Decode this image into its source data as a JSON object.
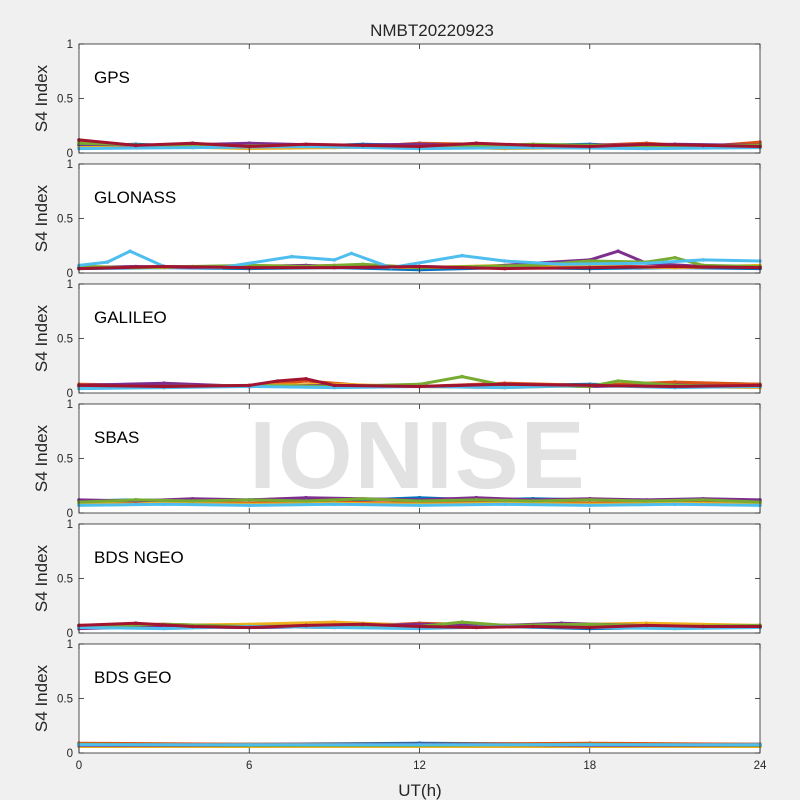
{
  "figure": {
    "title": "NMBT20220923",
    "xlabel": "UT(h)",
    "watermark": "IONISE",
    "background": "#f0f0f0",
    "axes_background": "#ffffff"
  },
  "chart_data": {
    "type": "scatter",
    "title": "NMBT20220923",
    "xlabel": "UT(h)",
    "xlim": [
      0,
      24
    ],
    "xticks": [
      "0",
      "6",
      "12",
      "18",
      "24"
    ],
    "ylim": [
      0,
      1
    ],
    "yticks": [
      "0",
      "0.5",
      "1"
    ],
    "grid": false,
    "colors": [
      "#0072BD",
      "#D95319",
      "#EDB120",
      "#7E2F8E",
      "#77AC30",
      "#4DBEEE",
      "#A2142F"
    ],
    "panels": [
      {
        "label": "GPS",
        "ylabel": "S4 Index",
        "series": [
          {
            "x": [
              0,
              2,
              4,
              6,
              8,
              10,
              12,
              14,
              16,
              18,
              20,
              22,
              24
            ],
            "y": [
              0.07,
              0.08,
              0.06,
              0.07,
              0.06,
              0.08,
              0.07,
              0.06,
              0.07,
              0.08,
              0.06,
              0.07,
              0.08
            ]
          },
          {
            "x": [
              0,
              2,
              4,
              6,
              8,
              10,
              12,
              14,
              16,
              18,
              20,
              22,
              24
            ],
            "y": [
              0.1,
              0.06,
              0.08,
              0.05,
              0.07,
              0.06,
              0.09,
              0.08,
              0.05,
              0.07,
              0.09,
              0.06,
              0.1
            ]
          },
          {
            "x": [
              0,
              3,
              6,
              9,
              12,
              15,
              18,
              21,
              24
            ],
            "y": [
              0.05,
              0.06,
              0.04,
              0.05,
              0.06,
              0.04,
              0.05,
              0.06,
              0.05
            ]
          },
          {
            "x": [
              0,
              3,
              6,
              9,
              12,
              15,
              18,
              21,
              24
            ],
            "y": [
              0.08,
              0.07,
              0.09,
              0.07,
              0.08,
              0.06,
              0.07,
              0.08,
              0.07
            ]
          },
          {
            "x": [
              0,
              4,
              8,
              12,
              16,
              20,
              24
            ],
            "y": [
              0.09,
              0.06,
              0.07,
              0.05,
              0.08,
              0.06,
              0.07
            ]
          },
          {
            "x": [
              0,
              4,
              8,
              12,
              16,
              20,
              24
            ],
            "y": [
              0.04,
              0.05,
              0.06,
              0.04,
              0.05,
              0.04,
              0.05
            ]
          },
          {
            "x": [
              0,
              2,
              4,
              6,
              8,
              10,
              12,
              14,
              16,
              18,
              20,
              22,
              24
            ],
            "y": [
              0.12,
              0.07,
              0.09,
              0.06,
              0.08,
              0.07,
              0.06,
              0.09,
              0.07,
              0.06,
              0.08,
              0.07,
              0.06
            ]
          }
        ]
      },
      {
        "label": "GLONASS",
        "ylabel": "S4 Index",
        "series": [
          {
            "x": [
              0,
              3,
              6,
              9,
              12,
              15,
              18,
              21,
              24
            ],
            "y": [
              0.04,
              0.05,
              0.04,
              0.05,
              0.03,
              0.05,
              0.04,
              0.05,
              0.04
            ]
          },
          {
            "x": [
              0,
              3,
              6,
              9,
              12,
              15,
              18,
              21,
              24
            ],
            "y": [
              0.05,
              0.06,
              0.05,
              0.07,
              0.05,
              0.06,
              0.07,
              0.05,
              0.06
            ]
          },
          {
            "x": [
              0,
              3,
              6,
              9,
              12,
              15,
              18,
              21,
              24
            ],
            "y": [
              0.06,
              0.05,
              0.07,
              0.06,
              0.05,
              0.07,
              0.06,
              0.05,
              0.07
            ]
          },
          {
            "x": [
              0,
              2,
              4,
              6,
              8,
              10,
              12,
              14,
              16,
              18,
              19,
              20,
              22,
              24
            ],
            "y": [
              0.05,
              0.06,
              0.05,
              0.06,
              0.07,
              0.05,
              0.06,
              0.05,
              0.09,
              0.12,
              0.2,
              0.09,
              0.06,
              0.05
            ]
          },
          {
            "x": [
              0,
              2,
              4,
              6,
              8,
              10,
              12,
              14,
              16,
              18,
              20,
              21,
              22,
              24
            ],
            "y": [
              0.06,
              0.05,
              0.06,
              0.07,
              0.06,
              0.08,
              0.05,
              0.06,
              0.07,
              0.11,
              0.1,
              0.14,
              0.07,
              0.06
            ]
          },
          {
            "x": [
              0,
              1,
              1.8,
              3,
              5,
              7.5,
              9,
              9.6,
              11,
              13.5,
              15,
              17,
              20,
              22,
              24
            ],
            "y": [
              0.07,
              0.1,
              0.2,
              0.06,
              0.05,
              0.15,
              0.12,
              0.18,
              0.05,
              0.16,
              0.11,
              0.08,
              0.09,
              0.12,
              0.11
            ]
          },
          {
            "x": [
              0,
              3,
              6,
              9,
              12,
              15,
              18,
              21,
              24
            ],
            "y": [
              0.04,
              0.06,
              0.05,
              0.05,
              0.06,
              0.04,
              0.05,
              0.06,
              0.05
            ]
          }
        ]
      },
      {
        "label": "GALILEO",
        "ylabel": "S4 Index",
        "series": [
          {
            "x": [
              0,
              3,
              6,
              9,
              12,
              15,
              18,
              20,
              22,
              24
            ],
            "y": [
              0.06,
              0.07,
              0.06,
              0.07,
              0.06,
              0.07,
              0.08,
              0.07,
              0.09,
              0.08
            ]
          },
          {
            "x": [
              0,
              3,
              6,
              8,
              10,
              12,
              15,
              18,
              21,
              24
            ],
            "y": [
              0.08,
              0.07,
              0.06,
              0.11,
              0.07,
              0.06,
              0.09,
              0.07,
              0.1,
              0.08
            ]
          },
          {
            "x": [
              0,
              3,
              6,
              9,
              12,
              15,
              18,
              21,
              24
            ],
            "y": [
              0.06,
              0.05,
              0.07,
              0.08,
              0.06,
              0.05,
              0.07,
              0.06,
              0.05
            ]
          },
          {
            "x": [
              0,
              3,
              6,
              9,
              12,
              15,
              18,
              21,
              24
            ],
            "y": [
              0.07,
              0.09,
              0.06,
              0.07,
              0.06,
              0.08,
              0.06,
              0.07,
              0.06
            ]
          },
          {
            "x": [
              0,
              3,
              6,
              9,
              12,
              13.5,
              15,
              18,
              19,
              21,
              24
            ],
            "y": [
              0.05,
              0.06,
              0.07,
              0.06,
              0.08,
              0.15,
              0.07,
              0.06,
              0.11,
              0.07,
              0.06
            ]
          },
          {
            "x": [
              0,
              3,
              6,
              9,
              12,
              15,
              18,
              21,
              24
            ],
            "y": [
              0.04,
              0.05,
              0.06,
              0.05,
              0.06,
              0.05,
              0.07,
              0.05,
              0.06
            ]
          },
          {
            "x": [
              0,
              3,
              6,
              7,
              8,
              9,
              12,
              15,
              18,
              21,
              24
            ],
            "y": [
              0.07,
              0.06,
              0.07,
              0.11,
              0.13,
              0.07,
              0.06,
              0.08,
              0.07,
              0.06,
              0.07
            ]
          }
        ]
      },
      {
        "label": "SBAS",
        "ylabel": "S4 Index",
        "series": [
          {
            "x": [
              0,
              2,
              4,
              6,
              8,
              10,
              12,
              14,
              16,
              18,
              20,
              22,
              24
            ],
            "y": [
              0.11,
              0.12,
              0.11,
              0.12,
              0.13,
              0.12,
              0.14,
              0.12,
              0.13,
              0.12,
              0.11,
              0.12,
              0.11
            ]
          },
          {
            "x": [
              0,
              3,
              6,
              9,
              12,
              15,
              18,
              21,
              24
            ],
            "y": [
              0.09,
              0.1,
              0.09,
              0.1,
              0.09,
              0.1,
              0.09,
              0.1,
              0.09
            ]
          },
          {
            "x": [
              0,
              3,
              6,
              9,
              12,
              15,
              18,
              21,
              24
            ],
            "y": [
              0.08,
              0.09,
              0.08,
              0.09,
              0.08,
              0.09,
              0.08,
              0.09,
              0.08
            ]
          },
          {
            "x": [
              0,
              2,
              4,
              6,
              8,
              10,
              12,
              14,
              16,
              18,
              20,
              22,
              24
            ],
            "y": [
              0.12,
              0.11,
              0.13,
              0.12,
              0.14,
              0.13,
              0.12,
              0.14,
              0.12,
              0.13,
              0.12,
              0.13,
              0.12
            ]
          },
          {
            "x": [
              0,
              2,
              4,
              6,
              8,
              10,
              12,
              14,
              16,
              18,
              20,
              22,
              24
            ],
            "y": [
              0.1,
              0.12,
              0.11,
              0.12,
              0.11,
              0.13,
              0.11,
              0.12,
              0.11,
              0.12,
              0.11,
              0.12,
              0.1
            ]
          },
          {
            "x": [
              0,
              3,
              6,
              9,
              12,
              15,
              18,
              21,
              24
            ],
            "y": [
              0.07,
              0.08,
              0.07,
              0.08,
              0.07,
              0.08,
              0.07,
              0.08,
              0.07
            ]
          }
        ]
      },
      {
        "label": "BDS NGEO",
        "ylabel": "S4 Index",
        "series": [
          {
            "x": [
              0,
              3,
              6,
              9,
              12,
              15,
              18,
              21,
              24
            ],
            "y": [
              0.05,
              0.06,
              0.05,
              0.06,
              0.07,
              0.06,
              0.04,
              0.05,
              0.06
            ]
          },
          {
            "x": [
              0,
              3,
              6,
              9,
              12,
              15,
              18,
              21,
              24
            ],
            "y": [
              0.07,
              0.08,
              0.06,
              0.05,
              0.09,
              0.07,
              0.06,
              0.05,
              0.07
            ]
          },
          {
            "x": [
              0,
              3,
              6,
              9,
              12,
              15,
              18,
              20,
              24
            ],
            "y": [
              0.06,
              0.07,
              0.08,
              0.1,
              0.07,
              0.06,
              0.08,
              0.09,
              0.07
            ]
          },
          {
            "x": [
              0,
              3,
              6,
              9,
              12,
              15,
              17,
              21,
              24
            ],
            "y": [
              0.04,
              0.06,
              0.05,
              0.06,
              0.08,
              0.07,
              0.09,
              0.06,
              0.05
            ]
          },
          {
            "x": [
              0,
              3,
              6,
              9,
              12,
              13.5,
              15,
              18,
              21,
              24
            ],
            "y": [
              0.06,
              0.08,
              0.06,
              0.07,
              0.06,
              0.1,
              0.07,
              0.08,
              0.06,
              0.07
            ]
          },
          {
            "x": [
              0,
              3,
              6,
              9,
              12,
              15,
              18,
              21,
              24
            ],
            "y": [
              0.05,
              0.04,
              0.06,
              0.05,
              0.04,
              0.06,
              0.05,
              0.04,
              0.05
            ]
          },
          {
            "x": [
              0,
              2,
              4,
              6,
              8,
              10,
              12,
              14,
              16,
              18,
              20,
              22,
              24
            ],
            "y": [
              0.07,
              0.09,
              0.06,
              0.05,
              0.07,
              0.08,
              0.06,
              0.05,
              0.06,
              0.05,
              0.07,
              0.06,
              0.06
            ]
          }
        ]
      },
      {
        "label": "BDS GEO",
        "ylabel": "S4 Index",
        "series": [
          {
            "x": [
              0,
              6,
              12,
              18,
              24
            ],
            "y": [
              0.08,
              0.08,
              0.09,
              0.08,
              0.08
            ]
          },
          {
            "x": [
              0,
              6,
              12,
              18,
              24
            ],
            "y": [
              0.09,
              0.08,
              0.08,
              0.09,
              0.08
            ]
          },
          {
            "x": [
              0,
              6,
              12,
              18,
              24
            ],
            "y": [
              0.06,
              0.06,
              0.06,
              0.06,
              0.06
            ]
          },
          {
            "x": [
              0,
              6,
              12,
              18,
              24
            ],
            "y": [
              0.07,
              0.07,
              0.08,
              0.07,
              0.07
            ]
          },
          {
            "x": [
              0,
              6,
              12,
              18,
              24
            ],
            "y": [
              0.08,
              0.07,
              0.07,
              0.08,
              0.07
            ]
          },
          {
            "x": [
              0,
              6,
              12,
              18,
              24
            ],
            "y": [
              0.075,
              0.075,
              0.075,
              0.075,
              0.075
            ]
          }
        ]
      }
    ]
  }
}
